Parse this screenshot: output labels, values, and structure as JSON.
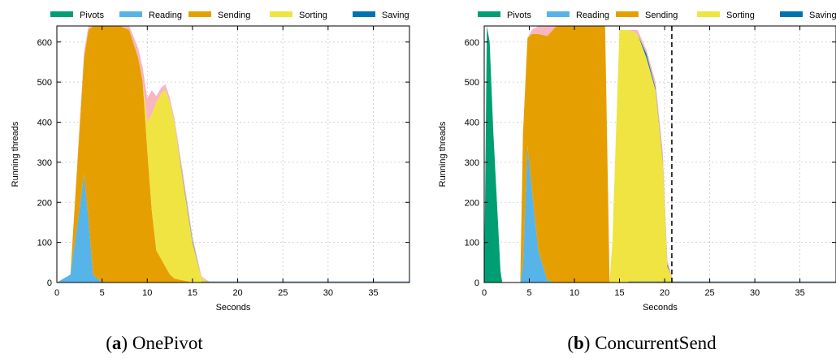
{
  "legend": [
    {
      "name": "Pivots",
      "color": "#009E73"
    },
    {
      "name": "Reading",
      "color": "#56B4E9"
    },
    {
      "name": "Sending",
      "color": "#E69F00"
    },
    {
      "name": "Sorting",
      "color": "#F0E442"
    },
    {
      "name": "Saving",
      "color": "#0072B2"
    }
  ],
  "overflow_color": "#F7B6C2",
  "chart_data": [
    {
      "type": "area",
      "stacked": true,
      "caption_tag": "a",
      "caption": "OnePivot",
      "xlabel": "Seconds",
      "ylabel": "Running threads",
      "xlim": [
        0,
        39
      ],
      "ylim": [
        0,
        640
      ],
      "xticks": [
        0,
        5,
        10,
        15,
        20,
        25,
        30,
        35
      ],
      "yticks": [
        0,
        100,
        200,
        300,
        400,
        500,
        600
      ],
      "grid": true,
      "legend_position": "top",
      "vline": null,
      "x": [
        0,
        1.5,
        2.5,
        3.0,
        3.5,
        4.0,
        5.0,
        6.0,
        7.0,
        8.0,
        9.0,
        9.5,
        10.0,
        10.5,
        11.0,
        11.5,
        12.0,
        12.5,
        13.0,
        14.0,
        15.0,
        16.0,
        17.0,
        39
      ],
      "series": [
        {
          "name": "Pivots",
          "values": [
            0,
            0,
            0,
            0,
            0,
            0,
            0,
            0,
            0,
            0,
            0,
            0,
            0,
            0,
            0,
            0,
            0,
            0,
            0,
            0,
            0,
            0,
            0,
            0
          ]
        },
        {
          "name": "Reading",
          "values": [
            0,
            20,
            180,
            270,
            160,
            20,
            0,
            0,
            0,
            0,
            0,
            0,
            0,
            0,
            0,
            0,
            0,
            0,
            0,
            0,
            0,
            0,
            0,
            0
          ]
        },
        {
          "name": "Sending",
          "values": [
            0,
            0,
            200,
            290,
            470,
            620,
            640,
            640,
            640,
            630,
            560,
            500,
            330,
            180,
            80,
            60,
            40,
            20,
            10,
            5,
            0,
            0,
            0,
            0
          ]
        },
        {
          "name": "Sorting",
          "values": [
            0,
            0,
            0,
            0,
            0,
            0,
            0,
            0,
            0,
            0,
            0,
            0,
            70,
            240,
            370,
            410,
            440,
            430,
            390,
            240,
            100,
            10,
            0,
            0
          ]
        },
        {
          "name": "Saving",
          "values": [
            0,
            0,
            0,
            0,
            0,
            0,
            0,
            0,
            0,
            0,
            0,
            0,
            0,
            0,
            0,
            0,
            0,
            0,
            0,
            5,
            5,
            0,
            0,
            0
          ]
        }
      ],
      "overflow": [
        0,
        0,
        10,
        15,
        15,
        20,
        0,
        0,
        0,
        10,
        25,
        35,
        60,
        60,
        15,
        15,
        15,
        10,
        10,
        15,
        10,
        5,
        0,
        0
      ]
    },
    {
      "type": "area",
      "stacked": true,
      "caption_tag": "b",
      "caption": "ConcurrentSend",
      "xlabel": "Seconds",
      "ylabel": "Running threads",
      "xlim": [
        0,
        39
      ],
      "ylim": [
        0,
        640
      ],
      "xticks": [
        0,
        5,
        10,
        15,
        20,
        25,
        30,
        35
      ],
      "yticks": [
        0,
        100,
        200,
        300,
        400,
        500,
        600
      ],
      "grid": true,
      "legend_position": "top",
      "vline": 20.8,
      "x": [
        0,
        0.3,
        0.6,
        1.0,
        1.5,
        1.8,
        2.0,
        4.0,
        4.3,
        4.8,
        5.3,
        6.0,
        7.0,
        8.0,
        10.0,
        12.0,
        13.4,
        13.9,
        14.2,
        15.0,
        16.0,
        17.0,
        18.0,
        19.0,
        19.8,
        20.3,
        20.7,
        21.0,
        39
      ],
      "series": [
        {
          "name": "Pivots",
          "values": [
            0,
            640,
            600,
            380,
            160,
            30,
            0,
            0,
            0,
            0,
            0,
            0,
            0,
            0,
            0,
            0,
            0,
            0,
            0,
            0,
            0,
            0,
            0,
            0,
            0,
            0,
            0,
            0,
            0
          ]
        },
        {
          "name": "Reading",
          "values": [
            0,
            0,
            0,
            0,
            0,
            0,
            0,
            0,
            40,
            340,
            230,
            80,
            5,
            0,
            0,
            0,
            0,
            0,
            0,
            0,
            0,
            0,
            0,
            0,
            0,
            0,
            0,
            0,
            0
          ]
        },
        {
          "name": "Sending",
          "values": [
            0,
            0,
            0,
            0,
            0,
            0,
            0,
            0,
            330,
            270,
            390,
            540,
            610,
            640,
            640,
            640,
            640,
            0,
            0,
            0,
            0,
            0,
            0,
            0,
            0,
            0,
            0,
            0,
            0
          ]
        },
        {
          "name": "Sorting",
          "values": [
            0,
            0,
            0,
            0,
            0,
            0,
            0,
            0,
            0,
            0,
            0,
            0,
            0,
            0,
            0,
            0,
            0,
            0,
            100,
            630,
            630,
            620,
            560,
            480,
            300,
            40,
            20,
            0,
            0
          ]
        },
        {
          "name": "Saving",
          "values": [
            0,
            0,
            0,
            0,
            0,
            0,
            0,
            0,
            0,
            0,
            0,
            0,
            0,
            0,
            0,
            0,
            0,
            0,
            0,
            0,
            0,
            0,
            10,
            5,
            5,
            5,
            0,
            0,
            0
          ]
        }
      ],
      "overflow": [
        0,
        0,
        0,
        0,
        0,
        0,
        0,
        0,
        0,
        0,
        10,
        20,
        25,
        0,
        0,
        0,
        0,
        0,
        0,
        0,
        0,
        10,
        10,
        15,
        20,
        10,
        5,
        0,
        0
      ]
    }
  ]
}
